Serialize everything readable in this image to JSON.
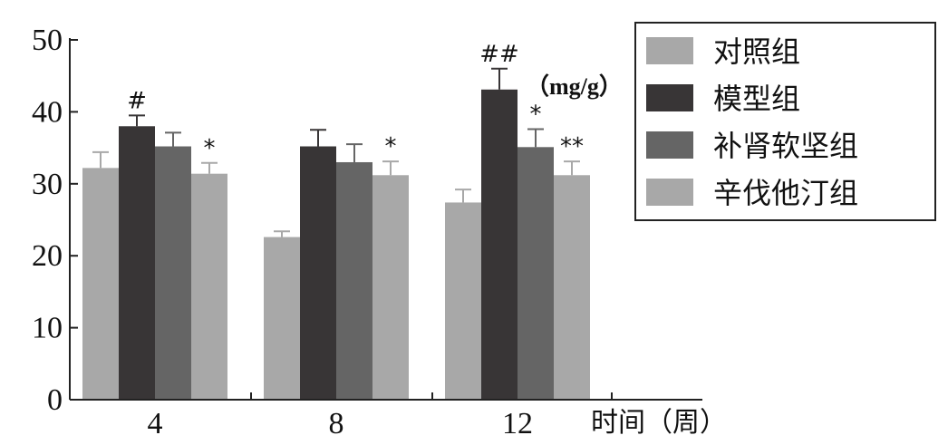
{
  "chart_data": {
    "type": "bar",
    "categories": [
      "4",
      "8",
      "12"
    ],
    "series": [
      {
        "name": "对照组",
        "color": "#a8a8a8",
        "values": [
          32.2,
          22.6,
          27.4
        ],
        "errors": [
          2.2,
          0.8,
          1.8
        ],
        "sig": [
          "",
          "",
          ""
        ]
      },
      {
        "name": "模型组",
        "color": "#383536",
        "values": [
          38.0,
          35.2,
          43.1
        ],
        "errors": [
          1.5,
          2.3,
          2.9
        ],
        "sig": [
          "#",
          "",
          "##"
        ]
      },
      {
        "name": "补肾软坚组",
        "color": "#656565",
        "values": [
          35.2,
          33.0,
          35.1
        ],
        "errors": [
          1.9,
          2.5,
          2.5
        ],
        "sig": [
          "",
          "",
          "*"
        ]
      },
      {
        "name": "辛伐他汀组",
        "color": "#a8a8a8",
        "values": [
          31.4,
          31.2,
          31.2
        ],
        "errors": [
          1.5,
          1.9,
          1.9
        ],
        "sig": [
          "*",
          "*",
          "**"
        ]
      }
    ],
    "ylim": [
      0,
      50
    ],
    "yticks": [
      "0",
      "10",
      "20",
      "30",
      "40",
      "50"
    ],
    "xlabel": "时间（周）",
    "unit_label": "（mg/g）",
    "legend_position": "top-right",
    "grid": false
  }
}
